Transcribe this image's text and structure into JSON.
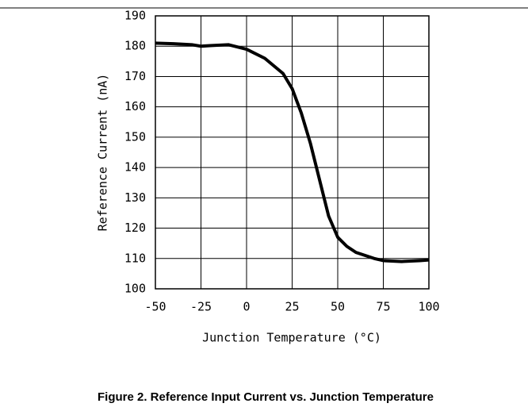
{
  "chart_data": {
    "type": "line",
    "title": "Figure 2. Reference Input Current vs. Junction Temperature",
    "x_label": "Junction Temperature (°C)",
    "y_label": "Reference Current (nA)",
    "xlim": [
      -50,
      100
    ],
    "xticks": [
      -50,
      -25,
      0,
      25,
      50,
      75,
      100
    ],
    "ylim": [
      100,
      190
    ],
    "yticks": [
      100,
      110,
      120,
      130,
      140,
      150,
      160,
      170,
      180,
      190
    ],
    "grid": true,
    "series": [
      {
        "color": "#000000",
        "x": [
          -50,
          -40,
          -30,
          -25,
          -20,
          -10,
          0,
          10,
          20,
          25,
          30,
          35,
          40,
          45,
          50,
          55,
          60,
          70,
          75,
          85,
          95,
          100
        ],
        "values": [
          181,
          180.8,
          180.5,
          180,
          180.2,
          180.5,
          179,
          176,
          171,
          166,
          158,
          148,
          136,
          124,
          117,
          114,
          112,
          110,
          109.3,
          109,
          109.3,
          109.5
        ]
      }
    ]
  }
}
